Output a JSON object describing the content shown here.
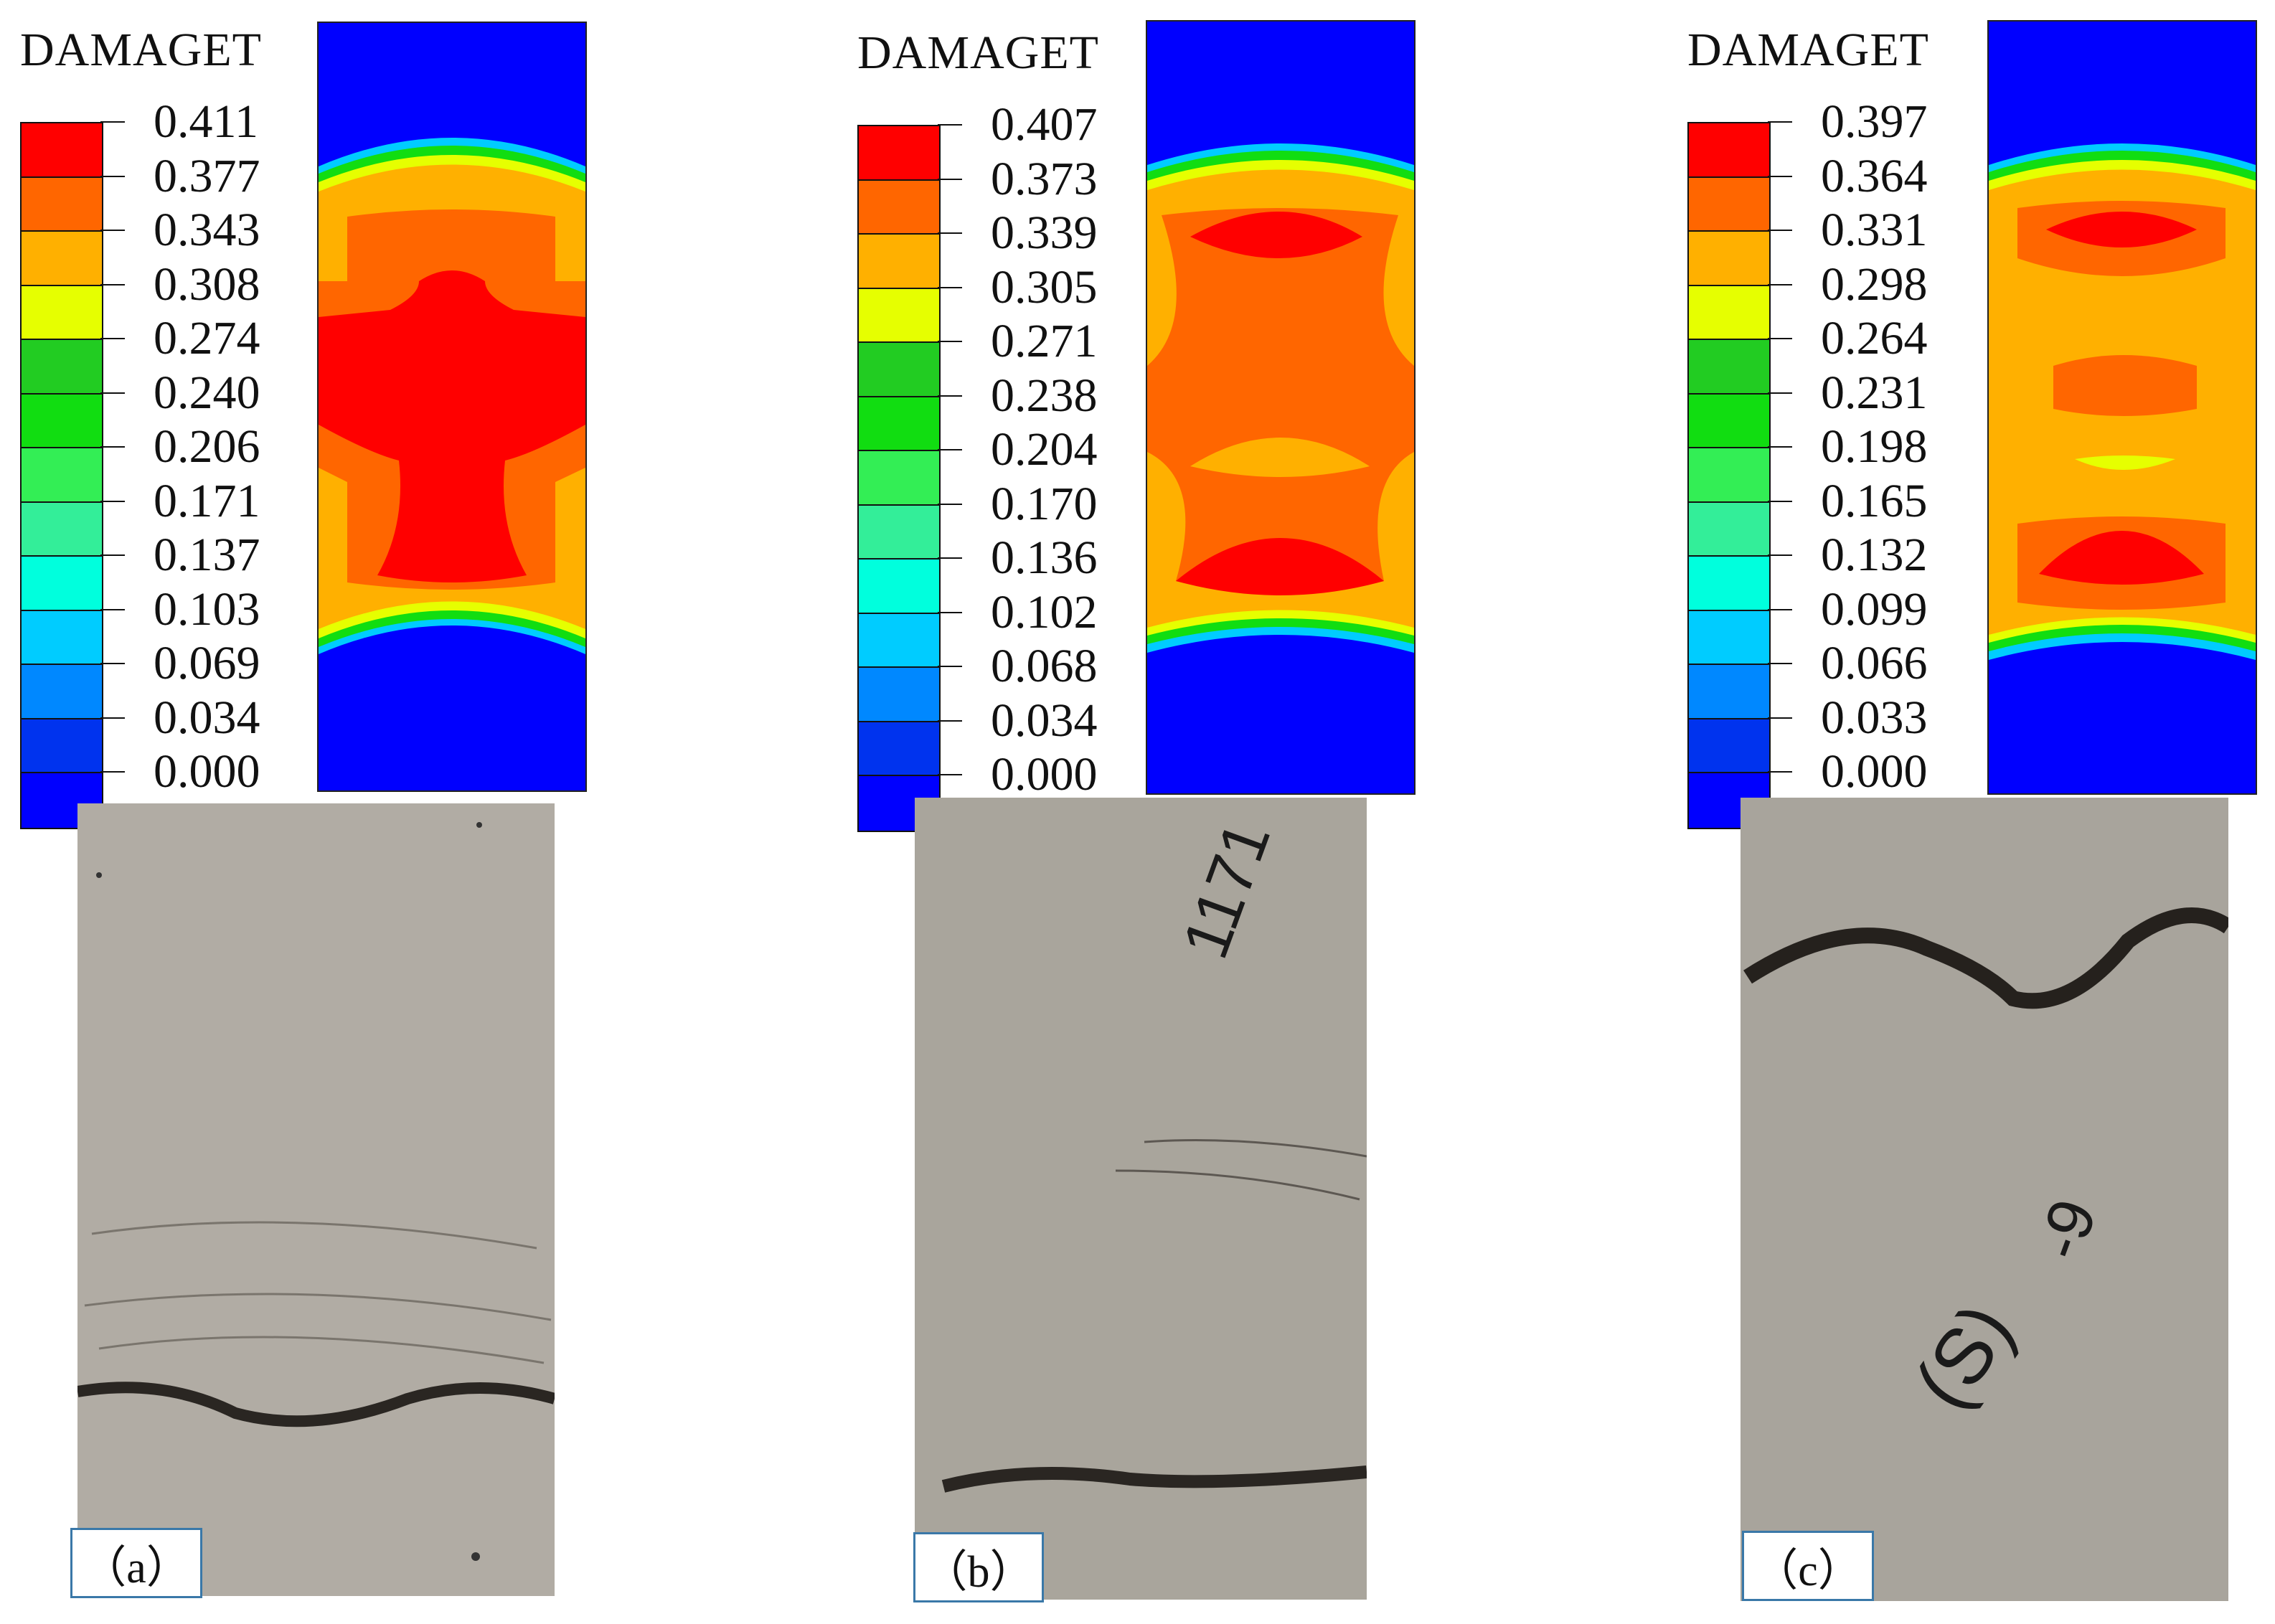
{
  "legend_colors": [
    "#ff0000",
    "#ff6600",
    "#ffb000",
    "#e6ff00",
    "#22cc22",
    "#11dd11",
    "#33ee55",
    "#33ee99",
    "#00ffdd",
    "#00ccff",
    "#0088ff",
    "#0033ee",
    "#0000ff"
  ],
  "panels": [
    {
      "id": "a",
      "title": "DAMAGET",
      "legend_values": [
        "0.411",
        "0.377",
        "0.343",
        "0.308",
        "0.274",
        "0.240",
        "0.206",
        "0.171",
        "0.137",
        "0.103",
        "0.069",
        "0.034",
        "0.000"
      ],
      "caption": "（a）"
    },
    {
      "id": "b",
      "title": "DAMAGET",
      "legend_values": [
        "0.407",
        "0.373",
        "0.339",
        "0.305",
        "0.271",
        "0.238",
        "0.204",
        "0.170",
        "0.136",
        "0.102",
        "0.068",
        "0.034",
        "0.000"
      ],
      "caption": "（b）"
    },
    {
      "id": "c",
      "title": "DAMAGET",
      "legend_values": [
        "0.397",
        "0.364",
        "0.331",
        "0.298",
        "0.264",
        "0.231",
        "0.198",
        "0.165",
        "0.132",
        "0.099",
        "0.066",
        "0.033",
        "0.000"
      ],
      "caption": "（c）"
    }
  ]
}
